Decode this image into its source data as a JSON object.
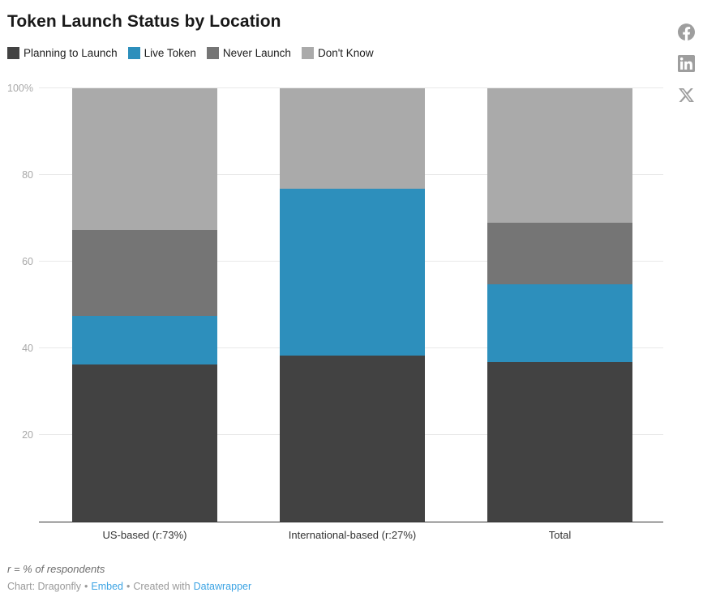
{
  "header": {
    "title": "Token Launch Status by Location",
    "social": [
      {
        "name": "facebook",
        "label": "Share on Facebook"
      },
      {
        "name": "linkedin",
        "label": "Share on LinkedIn"
      },
      {
        "name": "x",
        "label": "Share on X"
      }
    ]
  },
  "chart_data": {
    "type": "bar",
    "stacked": true,
    "unit": "%",
    "title": "Token Launch Status by Location",
    "categories": [
      "US-based (r:73%)",
      "International-based (r:27%)",
      "Total"
    ],
    "series": [
      {
        "name": "Planning to Launch",
        "color": "#424242",
        "values": [
          36.3,
          38.4,
          36.9
        ]
      },
      {
        "name": "Live Token",
        "color": "#2d8fbc",
        "values": [
          11.1,
          38.4,
          17.9
        ]
      },
      {
        "name": "Never Launch",
        "color": "#757575",
        "values": [
          19.9,
          0,
          14.2
        ]
      },
      {
        "name": "Don't Know",
        "color": "#aaaaaa",
        "values": [
          32.7,
          23.2,
          31.0
        ]
      }
    ],
    "ticks": [
      {
        "label": "100%",
        "value": 100
      },
      {
        "label": "80",
        "value": 80
      },
      {
        "label": "60",
        "value": 60
      },
      {
        "label": "40",
        "value": 40
      },
      {
        "label": "20",
        "value": 20
      }
    ],
    "ylim": [
      0,
      100
    ],
    "grid": true,
    "legend_position": "top"
  },
  "footer": {
    "footnote": "r = % of respondents",
    "credit": "Chart: Dragonfly",
    "separator": "•",
    "embed_link": "Embed",
    "created_with": "Created with",
    "tool_link": "Datawrapper"
  }
}
